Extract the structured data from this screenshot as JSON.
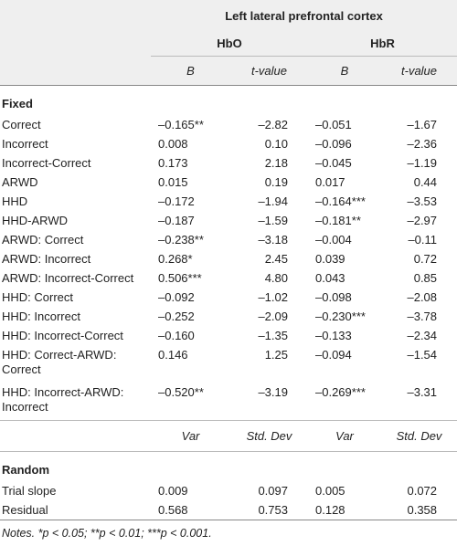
{
  "table": {
    "spanner": "Left lateral prefrontal cortex",
    "groups": [
      "HbO",
      "HbR"
    ],
    "columns": [
      "B",
      "t-value",
      "B",
      "t-value"
    ],
    "sections": [
      {
        "label": "Fixed",
        "rows": [
          {
            "label": "Correct",
            "cells": [
              "–0.165**",
              "–2.82",
              "–0.051",
              "–1.67"
            ]
          },
          {
            "label": "Incorrect",
            "cells": [
              "0.008",
              "0.10",
              "–0.096",
              "–2.36"
            ]
          },
          {
            "label": "Incorrect-Correct",
            "cells": [
              "0.173",
              "2.18",
              "–0.045",
              "–1.19"
            ]
          },
          {
            "label": "ARWD",
            "cells": [
              "0.015",
              "0.19",
              "0.017",
              "0.44"
            ]
          },
          {
            "label": "HHD",
            "cells": [
              "–0.172",
              "–1.94",
              "–0.164***",
              "–3.53"
            ]
          },
          {
            "label": "HHD-ARWD",
            "cells": [
              "–0.187",
              "–1.59",
              "–0.181**",
              "–2.97"
            ]
          },
          {
            "label": "ARWD: Correct",
            "cells": [
              "–0.238**",
              "–3.18",
              "–0.004",
              "–0.11"
            ]
          },
          {
            "label": "ARWD: Incorrect",
            "cells": [
              "0.268*",
              "2.45",
              "0.039",
              "0.72"
            ]
          },
          {
            "label": "ARWD: Incorrect-Correct",
            "cells": [
              "0.506***",
              "4.80",
              "0.043",
              "0.85"
            ]
          },
          {
            "label": "HHD: Correct",
            "cells": [
              "–0.092",
              "–1.02",
              "–0.098",
              "–2.08"
            ]
          },
          {
            "label": "HHD: Incorrect",
            "cells": [
              "–0.252",
              "–2.09",
              "–0.230***",
              "–3.78"
            ]
          },
          {
            "label": "HHD: Incorrect-Correct",
            "cells": [
              "–0.160",
              "–1.35",
              "–0.133",
              "–2.34"
            ]
          },
          {
            "label": "HHD: Correct-ARWD: Correct",
            "cells": [
              "0.146",
              "1.25",
              "–0.094",
              "–1.54"
            ]
          },
          {
            "label": "HHD: Incorrect-ARWD: Incorrect",
            "cells": [
              "–0.520**",
              "–3.19",
              "–0.269***",
              "–3.31"
            ]
          }
        ]
      },
      {
        "label": "Random",
        "rows": [
          {
            "label": "Trial slope",
            "cells": [
              "0.009",
              "0.097",
              "0.005",
              "0.072"
            ]
          },
          {
            "label": "Residual",
            "cells": [
              "0.568",
              "0.753",
              "0.128",
              "0.358"
            ]
          }
        ]
      }
    ],
    "random_columns": [
      "Var",
      "Std. Dev",
      "Var",
      "Std. Dev"
    ],
    "notes": "Notes. *p < 0.05; **p < 0.01; ***p < 0.001."
  }
}
